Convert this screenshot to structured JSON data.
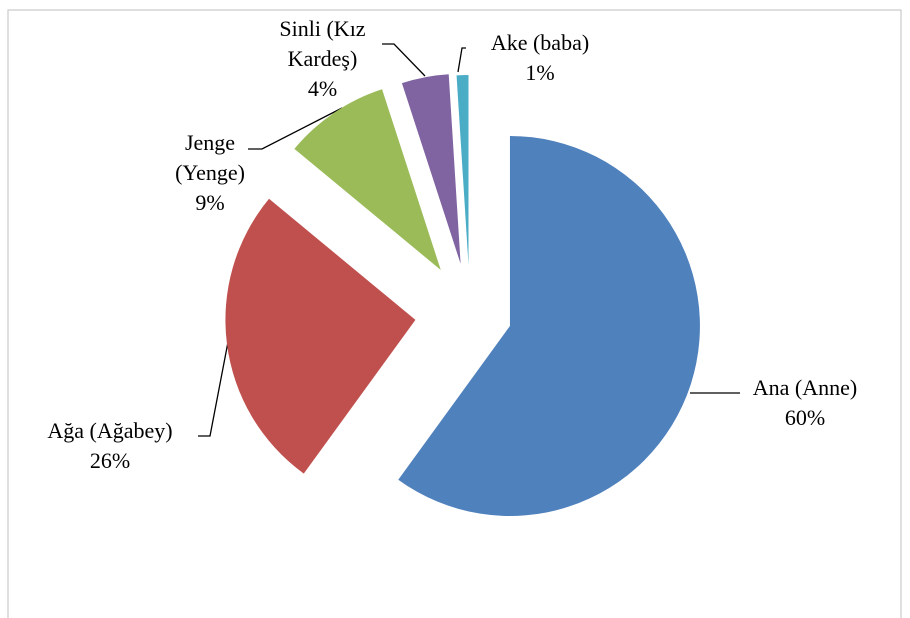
{
  "chart_data": {
    "type": "pie",
    "categories": [
      "Ana (Anne)",
      "Ağa (Ağabey)",
      "Jenge (Yenge)",
      "Sinli (Kız Kardeş)",
      "Ake (baba)"
    ],
    "values": [
      60,
      26,
      9,
      4,
      1
    ],
    "value_labels": [
      "60%",
      "26%",
      "9%",
      "4%",
      "1%"
    ],
    "colors": [
      "#4f81bd",
      "#c0504d",
      "#9bbb59",
      "#8064a2",
      "#4bacc6"
    ]
  }
}
